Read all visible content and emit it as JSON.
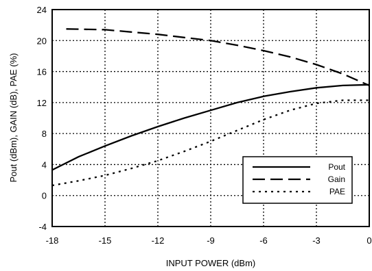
{
  "chart_data": {
    "type": "line",
    "title": "",
    "xlabel": "INPUT POWER (dBm)",
    "ylabel": "Pout (dBm), GAIN (dB), PAE (%)",
    "xlim": [
      -18,
      0
    ],
    "ylim": [
      -4,
      24
    ],
    "xticks": [
      -18,
      -15,
      -12,
      -9,
      -6,
      -3,
      0
    ],
    "yticks": [
      -4,
      0,
      4,
      8,
      12,
      16,
      20,
      24
    ],
    "grid": true,
    "grid_style": "dotted",
    "legend_position": "lower-right",
    "series": [
      {
        "name": "Pout",
        "style": "solid",
        "color": "#000000",
        "points": [
          [
            -18,
            3.3
          ],
          [
            -16.5,
            5.0
          ],
          [
            -15,
            6.4
          ],
          [
            -13.5,
            7.7
          ],
          [
            -12,
            8.9
          ],
          [
            -10.5,
            10.0
          ],
          [
            -9,
            11.0
          ],
          [
            -7.5,
            12.0
          ],
          [
            -6,
            12.8
          ],
          [
            -4.5,
            13.4
          ],
          [
            -3,
            13.9
          ],
          [
            -1.5,
            14.2
          ],
          [
            0,
            14.3
          ]
        ]
      },
      {
        "name": "Gain",
        "style": "dashed",
        "color": "#000000",
        "points": [
          [
            -17.2,
            21.5
          ],
          [
            -15,
            21.4
          ],
          [
            -13.5,
            21.1
          ],
          [
            -12,
            20.8
          ],
          [
            -10.5,
            20.4
          ],
          [
            -9,
            20.0
          ],
          [
            -7.5,
            19.4
          ],
          [
            -6,
            18.7
          ],
          [
            -4.5,
            17.9
          ],
          [
            -3,
            16.9
          ],
          [
            -1.5,
            15.7
          ],
          [
            0,
            14.2
          ]
        ]
      },
      {
        "name": "PAE",
        "style": "dotted",
        "color": "#000000",
        "points": [
          [
            -18,
            1.3
          ],
          [
            -16.5,
            1.9
          ],
          [
            -15,
            2.6
          ],
          [
            -13.5,
            3.5
          ],
          [
            -12,
            4.5
          ],
          [
            -10.5,
            5.7
          ],
          [
            -9,
            7.0
          ],
          [
            -7.5,
            8.4
          ],
          [
            -6,
            9.8
          ],
          [
            -4.5,
            11.0
          ],
          [
            -3,
            11.9
          ],
          [
            -1.5,
            12.3
          ],
          [
            0,
            12.3
          ]
        ]
      }
    ]
  }
}
